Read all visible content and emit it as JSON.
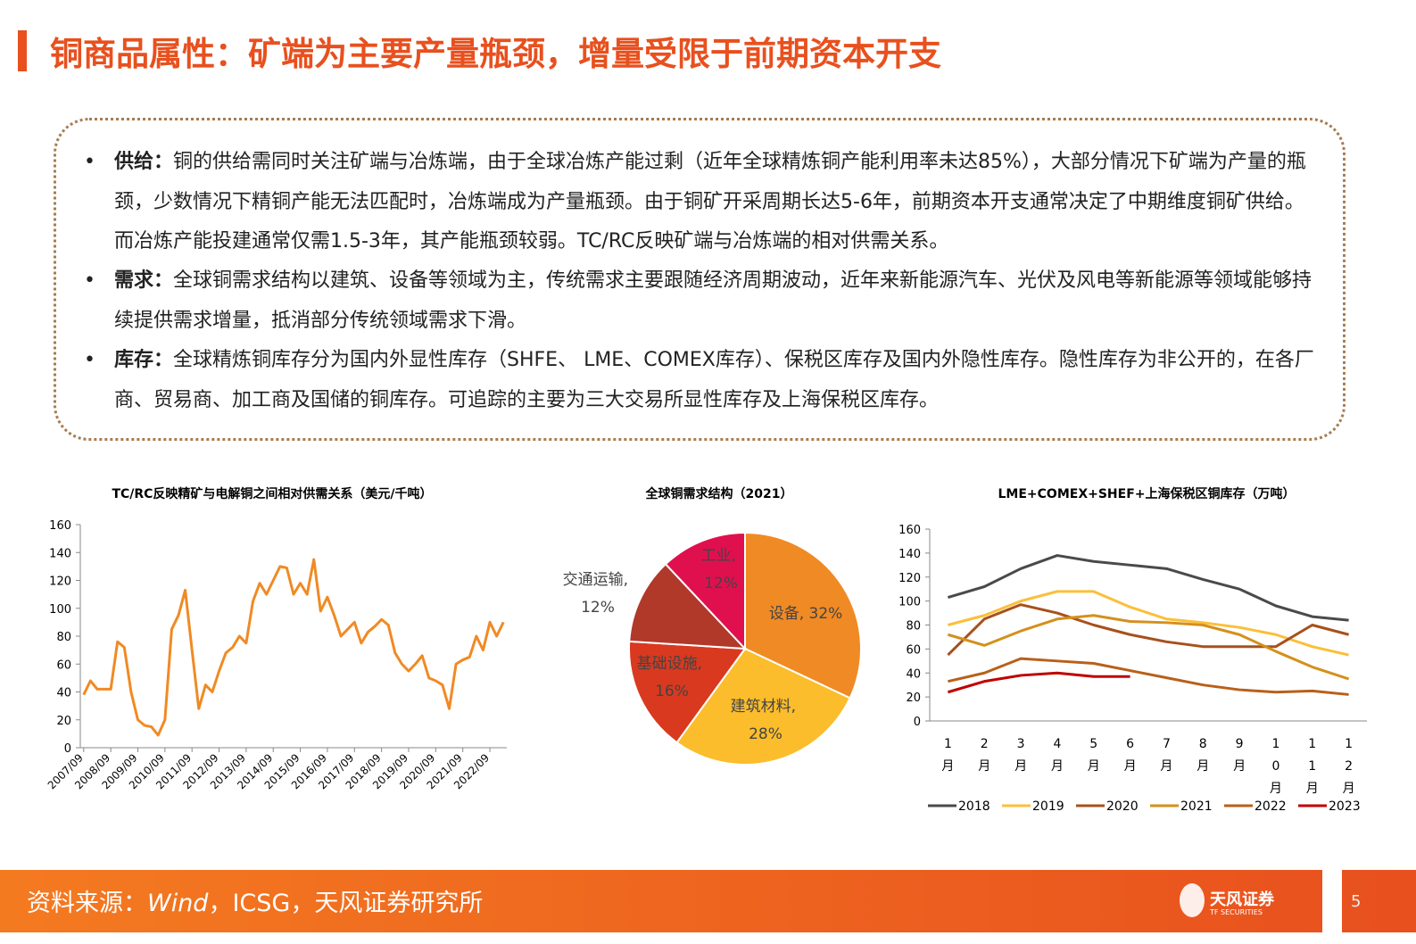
{
  "header": {
    "title": "铜商品属性：矿端为主要产量瓶颈，增量受限于前期资本开支"
  },
  "bullets": [
    {
      "head": "供给：",
      "body": "铜的供给需同时关注矿端与冶炼端，由于全球冶炼产能过剩（近年全球精炼铜产能利用率未达85%），大部分情况下矿端为产量的瓶颈，少数情况下精铜产能无法匹配时，冶炼端成为产量瓶颈。由于铜矿开采周期长达5-6年，前期资本开支通常决定了中期维度铜矿供给。而冶炼产能投建通常仅需1.5-3年，其产能瓶颈较弱。TC/RC反映矿端与冶炼端的相对供需关系。"
    },
    {
      "head": "需求：",
      "body": "全球铜需求结构以建筑、设备等领域为主，传统需求主要跟随经济周期波动，近年来新能源汽车、光伏及风电等新能源等领域能够持续提供需求增量，抵消部分传统领域需求下滑。"
    },
    {
      "head": "库存：",
      "body": "全球精炼铜库存分为国内外显性库存（SHFE、 LME、COMEX库存）、保税区库存及国内外隐性库存。隐性库存为非公开的，在各厂商、贸易商、加工商及国储的铜库存。可追踪的主要为三大交易所显性库存及上海保税区库存。"
    }
  ],
  "chart_data": [
    {
      "type": "line",
      "title": "TC/RC反映精矿与电解铜之间相对供需关系（美元/千吨）",
      "color": "#f08a24",
      "categories": [
        "2007/09",
        null,
        null,
        null,
        "2008/09",
        null,
        null,
        null,
        "2009/09",
        null,
        null,
        null,
        "2010/09",
        null,
        null,
        null,
        "2011/09",
        null,
        null,
        null,
        "2012/09",
        null,
        null,
        null,
        "2013/09",
        null,
        null,
        null,
        "2014/09",
        null,
        null,
        null,
        "2015/09",
        null,
        null,
        null,
        "2016/09",
        null,
        null,
        null,
        "2017/09",
        null,
        null,
        null,
        "2018/09",
        null,
        null,
        null,
        "2019/09",
        null,
        null,
        null,
        "2020/09",
        null,
        null,
        null,
        "2021/09",
        null,
        null,
        null,
        "2022/09",
        null,
        null
      ],
      "values": [
        38,
        48,
        42,
        42,
        42,
        76,
        72,
        40,
        20,
        16,
        15,
        9,
        20,
        85,
        95,
        113,
        70,
        28,
        45,
        40,
        55,
        68,
        72,
        80,
        75,
        105,
        118,
        110,
        120,
        130,
        129,
        110,
        118,
        110,
        135,
        98,
        108,
        95,
        80,
        85,
        90,
        75,
        83,
        87,
        92,
        88,
        68,
        60,
        55,
        60,
        66,
        50,
        48,
        45,
        28,
        60,
        63,
        65,
        80,
        70,
        90,
        80,
        90
      ],
      "ylim": [
        0,
        160
      ],
      "yticks": [
        0,
        20,
        40,
        60,
        80,
        100,
        120,
        140,
        160
      ]
    },
    {
      "type": "pie",
      "title": "全球铜需求结构（2021）",
      "values": [
        32,
        28,
        16,
        12,
        12
      ],
      "value_labels": [
        "设备, 32%",
        "建筑材料, 28%",
        "基础设施, 16%",
        "交通运输, 12%",
        "工业, 12%"
      ],
      "colors": [
        "#f08a24",
        "#fbbd2b",
        "#d9391f",
        "#b0392a",
        "#e0104f"
      ]
    },
    {
      "type": "line",
      "title": "LME+COMEX+SHEF+上海保税区铜库存（万吨）",
      "categories": [
        "1月",
        "2月",
        "3月",
        "4月",
        "5月",
        "6月",
        "7月",
        "8月",
        "9月",
        "10月",
        "11月",
        "12月"
      ],
      "series": [
        {
          "name": "2018",
          "color": "#4a4a4a",
          "values": [
            103,
            112,
            127,
            138,
            133,
            130,
            127,
            118,
            110,
            96,
            87,
            84
          ]
        },
        {
          "name": "2019",
          "color": "#fbbf3a",
          "values": [
            80,
            88,
            100,
            108,
            108,
            95,
            85,
            82,
            78,
            72,
            62,
            55
          ]
        },
        {
          "name": "2020",
          "color": "#a8501c",
          "values": [
            55,
            85,
            97,
            90,
            80,
            72,
            66,
            62,
            62,
            62,
            80,
            72
          ]
        },
        {
          "name": "2021",
          "color": "#d4901c",
          "values": [
            72,
            63,
            75,
            85,
            88,
            83,
            82,
            80,
            72,
            58,
            45,
            35
          ]
        },
        {
          "name": "2022",
          "color": "#b8601a",
          "values": [
            33,
            40,
            52,
            50,
            48,
            42,
            36,
            30,
            26,
            24,
            25,
            22
          ]
        },
        {
          "name": "2023",
          "color": "#c00000",
          "values": [
            24,
            33,
            38,
            40,
            37,
            37,
            null,
            null,
            null,
            null,
            null,
            null
          ]
        }
      ],
      "ylim": [
        0,
        160
      ],
      "yticks": [
        0,
        20,
        40,
        60,
        80,
        100,
        120,
        140,
        160
      ]
    }
  ],
  "footer": {
    "prefix": "资料来源：",
    "italic": "Wind",
    "rest": "，ICSG，天风证券研究所",
    "logo": "天风证券",
    "logo_sub": "TF SECURITIES",
    "page": "5"
  }
}
